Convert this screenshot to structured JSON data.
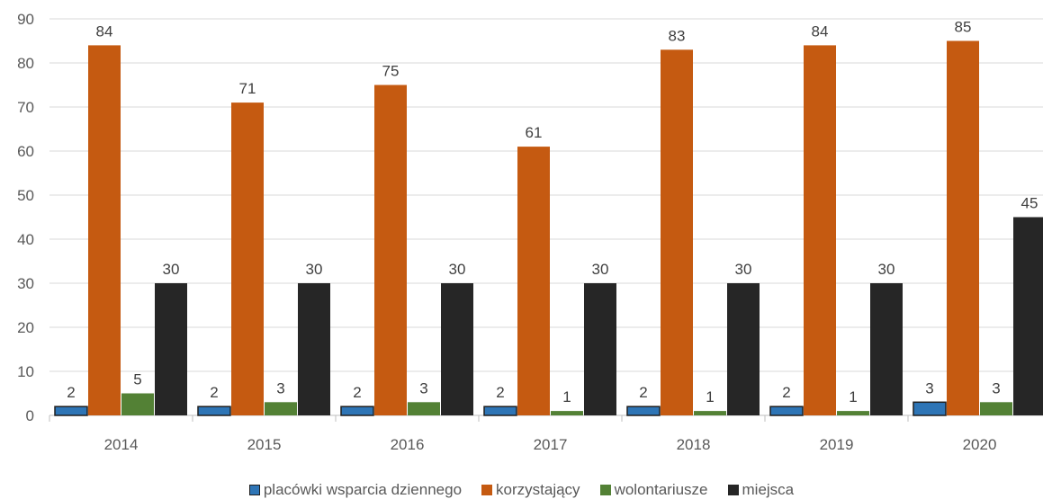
{
  "chart_data": {
    "type": "bar",
    "categories": [
      "2014",
      "2015",
      "2016",
      "2017",
      "2018",
      "2019",
      "2020"
    ],
    "series": [
      {
        "name": "placówki wsparcia dziennego",
        "values": [
          2,
          2,
          2,
          2,
          2,
          2,
          3
        ],
        "color": "#2E75B6",
        "border": "#1F1F1F"
      },
      {
        "name": "korzystający",
        "values": [
          84,
          71,
          75,
          61,
          83,
          84,
          85
        ],
        "color": "#C55A11"
      },
      {
        "name": "wolontariusze",
        "values": [
          5,
          3,
          3,
          1,
          1,
          1,
          3
        ],
        "color": "#538135"
      },
      {
        "name": "miejsca",
        "values": [
          30,
          30,
          30,
          30,
          30,
          30,
          45
        ],
        "color": "#262626"
      }
    ],
    "yticks": [
      "0",
      "10",
      "20",
      "30",
      "40",
      "50",
      "60",
      "70",
      "80",
      "90"
    ],
    "ylim": [
      0,
      90
    ],
    "grid": true,
    "legend_position": "bottom"
  }
}
